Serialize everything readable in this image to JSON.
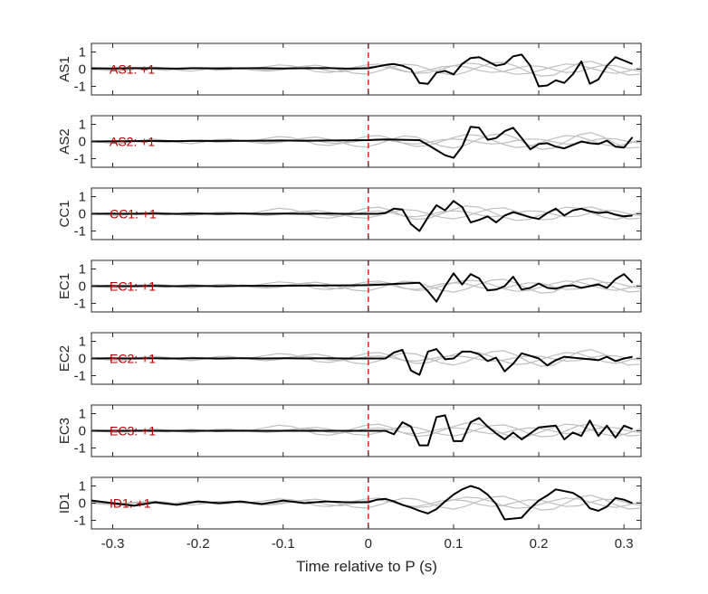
{
  "chart_data": {
    "type": "line",
    "xlabel": "Time relative to P (s)",
    "xlim": [
      -0.325,
      0.32
    ],
    "xticks": [
      -0.3,
      -0.2,
      -0.1,
      0,
      0.1,
      0.2,
      0.3
    ],
    "xtick_labels": [
      "-0.3",
      "-0.2",
      "-0.1",
      "0",
      "0.1",
      "0.2",
      "0.3"
    ],
    "ylim": [
      -1.5,
      1.5
    ],
    "yticks": [
      1,
      0,
      -1
    ],
    "ytick_labels": [
      "1",
      "0",
      "-1"
    ],
    "marker_x": 0,
    "marker_color": "#e60000",
    "main_color": "#000000",
    "bg_series_color": "#bfbfbf",
    "annotation_color": "#b30000",
    "grid": false,
    "panels": [
      {
        "ylabel": "AS1",
        "annotation": "AS1: +1",
        "x": [
          -0.325,
          -0.3,
          -0.275,
          -0.25,
          -0.225,
          -0.2,
          -0.175,
          -0.15,
          -0.125,
          -0.1,
          -0.075,
          -0.05,
          -0.025,
          0,
          0.01,
          0.02,
          0.03,
          0.04,
          0.05,
          0.06,
          0.07,
          0.08,
          0.09,
          0.1,
          0.11,
          0.12,
          0.13,
          0.14,
          0.15,
          0.16,
          0.17,
          0.18,
          0.19,
          0.2,
          0.21,
          0.22,
          0.23,
          0.24,
          0.25,
          0.26,
          0.27,
          0.28,
          0.29,
          0.3,
          0.31
        ],
        "values": [
          0.05,
          0.04,
          0.06,
          0.05,
          0.03,
          0.06,
          0.04,
          0.05,
          0.06,
          0.04,
          0.05,
          0.07,
          0.03,
          0.05,
          0.15,
          0.25,
          0.3,
          0.2,
          0.0,
          -0.8,
          -0.85,
          -0.2,
          -0.1,
          -0.3,
          0.3,
          0.65,
          0.7,
          0.45,
          0.2,
          0.3,
          0.75,
          0.85,
          0.2,
          -1.0,
          -0.95,
          -0.65,
          -0.8,
          -0.3,
          0.45,
          -0.85,
          -0.6,
          0.2,
          0.7,
          0.5,
          0.3
        ]
      },
      {
        "ylabel": "AS2",
        "annotation": "AS2: +1",
        "x": [
          -0.325,
          -0.3,
          -0.275,
          -0.25,
          -0.225,
          -0.2,
          -0.175,
          -0.15,
          -0.125,
          -0.1,
          -0.075,
          -0.05,
          -0.025,
          0,
          0.02,
          0.04,
          0.06,
          0.07,
          0.08,
          0.09,
          0.1,
          0.11,
          0.12,
          0.13,
          0.14,
          0.15,
          0.16,
          0.17,
          0.18,
          0.19,
          0.2,
          0.21,
          0.22,
          0.23,
          0.24,
          0.25,
          0.26,
          0.27,
          0.28,
          0.29,
          0.3,
          0.31
        ],
        "values": [
          0.0,
          0.01,
          0.02,
          0.03,
          0.02,
          0.04,
          0.03,
          0.04,
          0.05,
          0.06,
          0.04,
          0.06,
          0.07,
          0.08,
          0.12,
          0.1,
          0.08,
          -0.2,
          -0.5,
          -0.8,
          -0.95,
          -0.3,
          0.85,
          0.8,
          0.1,
          0.2,
          0.6,
          0.8,
          0.2,
          -0.45,
          -0.15,
          -0.1,
          -0.3,
          -0.4,
          -0.2,
          0.0,
          -0.1,
          -0.15,
          0.05,
          -0.3,
          -0.35,
          0.25
        ]
      },
      {
        "ylabel": "CC1",
        "annotation": "CC1: +1",
        "x": [
          -0.325,
          -0.3,
          -0.275,
          -0.25,
          -0.225,
          -0.2,
          -0.175,
          -0.15,
          -0.125,
          -0.1,
          -0.075,
          -0.05,
          -0.025,
          0,
          0.01,
          0.02,
          0.03,
          0.04,
          0.05,
          0.06,
          0.07,
          0.08,
          0.09,
          0.1,
          0.11,
          0.12,
          0.13,
          0.14,
          0.15,
          0.16,
          0.17,
          0.18,
          0.19,
          0.2,
          0.21,
          0.22,
          0.23,
          0.24,
          0.25,
          0.26,
          0.27,
          0.28,
          0.29,
          0.3,
          0.31
        ],
        "values": [
          0.0,
          0.01,
          0.0,
          0.01,
          0.0,
          0.01,
          0.0,
          0.01,
          0.0,
          0.01,
          0.0,
          0.01,
          0.0,
          0.0,
          0.0,
          0.05,
          0.3,
          0.25,
          -0.6,
          -1.0,
          -0.2,
          0.5,
          0.2,
          0.75,
          0.4,
          -0.5,
          -0.35,
          -0.15,
          -0.5,
          -0.1,
          0.1,
          -0.05,
          -0.2,
          -0.3,
          0.05,
          0.3,
          -0.1,
          0.2,
          0.3,
          0.15,
          0.05,
          0.1,
          -0.05,
          -0.15,
          -0.1
        ]
      },
      {
        "ylabel": "EC1",
        "annotation": "EC1: +1",
        "x": [
          -0.325,
          -0.3,
          -0.275,
          -0.25,
          -0.225,
          -0.2,
          -0.175,
          -0.15,
          -0.125,
          -0.1,
          -0.075,
          -0.05,
          -0.025,
          0,
          0.02,
          0.04,
          0.06,
          0.07,
          0.08,
          0.09,
          0.1,
          0.11,
          0.12,
          0.13,
          0.14,
          0.15,
          0.16,
          0.17,
          0.18,
          0.19,
          0.2,
          0.21,
          0.22,
          0.23,
          0.24,
          0.25,
          0.26,
          0.27,
          0.28,
          0.29,
          0.3,
          0.31
        ],
        "values": [
          0.0,
          0.01,
          0.0,
          0.01,
          0.0,
          0.01,
          0.0,
          0.01,
          0.02,
          0.02,
          0.03,
          0.04,
          0.05,
          0.06,
          0.1,
          0.15,
          0.2,
          -0.3,
          -0.9,
          0.0,
          0.75,
          0.1,
          0.7,
          0.45,
          -0.25,
          -0.2,
          0.0,
          0.55,
          -0.2,
          -0.1,
          0.15,
          -0.1,
          -0.15,
          0.0,
          0.05,
          -0.1,
          0.0,
          0.1,
          -0.1,
          0.4,
          0.7,
          0.2
        ]
      },
      {
        "ylabel": "EC2",
        "annotation": "EC2: +1",
        "x": [
          -0.325,
          -0.3,
          -0.275,
          -0.25,
          -0.225,
          -0.2,
          -0.175,
          -0.15,
          -0.125,
          -0.1,
          -0.075,
          -0.05,
          -0.025,
          0,
          0.02,
          0.03,
          0.04,
          0.05,
          0.06,
          0.07,
          0.08,
          0.09,
          0.1,
          0.11,
          0.12,
          0.13,
          0.14,
          0.15,
          0.16,
          0.17,
          0.18,
          0.19,
          0.2,
          0.21,
          0.22,
          0.23,
          0.24,
          0.25,
          0.26,
          0.27,
          0.28,
          0.29,
          0.3,
          0.31
        ],
        "values": [
          0.0,
          0.01,
          0.0,
          0.01,
          0.0,
          0.01,
          0.0,
          0.01,
          0.0,
          0.01,
          0.0,
          0.01,
          0.0,
          0.0,
          0.0,
          0.35,
          0.5,
          -0.7,
          -0.95,
          0.4,
          0.55,
          -0.05,
          0.0,
          0.4,
          0.4,
          0.25,
          -0.15,
          0.05,
          -0.75,
          -0.3,
          0.3,
          0.15,
          0.0,
          -0.4,
          -0.1,
          0.1,
          0.05,
          0.0,
          -0.05,
          -0.1,
          0.1,
          -0.15,
          0.0,
          0.1
        ]
      },
      {
        "ylabel": "EC3",
        "annotation": "EC3: +1",
        "x": [
          -0.325,
          -0.3,
          -0.275,
          -0.25,
          -0.225,
          -0.2,
          -0.175,
          -0.15,
          -0.125,
          -0.1,
          -0.075,
          -0.05,
          -0.025,
          0,
          0.02,
          0.03,
          0.04,
          0.05,
          0.06,
          0.07,
          0.08,
          0.09,
          0.1,
          0.11,
          0.12,
          0.13,
          0.14,
          0.15,
          0.16,
          0.17,
          0.18,
          0.19,
          0.2,
          0.21,
          0.22,
          0.23,
          0.24,
          0.25,
          0.26,
          0.27,
          0.28,
          0.29,
          0.3,
          0.31
        ],
        "values": [
          0.0,
          0.0,
          0.0,
          0.0,
          0.0,
          0.0,
          0.0,
          0.0,
          0.0,
          0.0,
          0.0,
          0.0,
          0.0,
          0.0,
          0.0,
          -0.2,
          0.5,
          0.25,
          -0.85,
          -0.85,
          0.8,
          0.9,
          -0.6,
          -0.6,
          0.5,
          0.75,
          0.25,
          -0.15,
          -0.5,
          -0.1,
          -0.5,
          -0.15,
          0.2,
          0.25,
          0.3,
          -0.5,
          -0.1,
          -0.3,
          0.6,
          -0.3,
          0.3,
          -0.4,
          0.3,
          0.1
        ]
      },
      {
        "ylabel": "ID1",
        "annotation": "ID1: +1",
        "x": [
          -0.325,
          -0.3,
          -0.275,
          -0.25,
          -0.225,
          -0.2,
          -0.175,
          -0.15,
          -0.125,
          -0.1,
          -0.075,
          -0.05,
          -0.025,
          0,
          0.01,
          0.02,
          0.03,
          0.04,
          0.05,
          0.06,
          0.07,
          0.08,
          0.09,
          0.1,
          0.11,
          0.12,
          0.13,
          0.14,
          0.15,
          0.16,
          0.17,
          0.18,
          0.19,
          0.2,
          0.21,
          0.22,
          0.23,
          0.24,
          0.25,
          0.26,
          0.27,
          0.28,
          0.29,
          0.3,
          0.31
        ],
        "values": [
          0.15,
          0.0,
          -0.15,
          0.05,
          -0.1,
          0.1,
          0.0,
          0.1,
          -0.05,
          0.15,
          0.0,
          0.1,
          0.05,
          0.05,
          0.2,
          0.25,
          0.1,
          -0.1,
          -0.25,
          -0.45,
          -0.6,
          -0.35,
          0.1,
          0.5,
          0.8,
          1.0,
          0.85,
          0.5,
          -0.05,
          -0.95,
          -0.9,
          -0.85,
          -0.3,
          0.15,
          0.45,
          0.8,
          0.7,
          0.6,
          0.3,
          -0.3,
          -0.45,
          -0.2,
          0.3,
          0.2,
          0.0
        ]
      }
    ],
    "background_traces": [
      [
        0.0,
        0.02,
        -0.03,
        0.04,
        -0.02,
        0.03,
        0.01,
        -0.04,
        0.05,
        0.02,
        -0.03,
        0.06,
        0.0,
        0.05,
        0.15,
        0.25,
        0.2,
        0.05,
        -0.15,
        -0.2,
        -0.1,
        0.1,
        0.25,
        0.3,
        0.15,
        -0.1,
        -0.25,
        -0.2,
        0.0,
        0.2,
        0.35,
        0.3,
        0.1,
        -0.15,
        -0.3,
        -0.25,
        -0.05,
        0.15,
        0.3,
        0.25,
        0.05,
        -0.15,
        -0.25,
        -0.1,
        0.1
      ],
      [
        0.0,
        -0.05,
        -0.1,
        -0.04,
        0.05,
        0.1,
        0.05,
        -0.05,
        -0.1,
        -0.02,
        0.08,
        0.1,
        0.03,
        -0.05,
        -0.1,
        -0.05,
        0.05,
        0.15,
        0.2,
        0.1,
        -0.05,
        -0.2,
        -0.25,
        -0.1,
        0.1,
        0.25,
        0.2,
        0.0,
        -0.2,
        -0.3,
        -0.15,
        0.1,
        0.3,
        0.35,
        0.15,
        -0.15,
        -0.35,
        -0.3,
        0.0,
        0.3,
        0.4,
        0.2,
        -0.1,
        -0.3,
        -0.25
      ],
      [
        0.05,
        0.0,
        -0.05,
        0.02,
        0.06,
        0.0,
        -0.06,
        0.02,
        0.08,
        0.03,
        -0.05,
        -0.02,
        0.06,
        0.02,
        -0.04,
        0.0,
        0.08,
        0.12,
        0.05,
        -0.08,
        -0.12,
        -0.02,
        0.1,
        0.15,
        0.05,
        -0.1,
        -0.15,
        -0.05,
        0.1,
        0.15,
        0.1,
        -0.05,
        -0.15,
        -0.1,
        0.05,
        0.15,
        0.12,
        -0.02,
        -0.15,
        -0.12,
        0.05,
        0.18,
        0.15,
        0.0,
        -0.1
      ]
    ]
  }
}
